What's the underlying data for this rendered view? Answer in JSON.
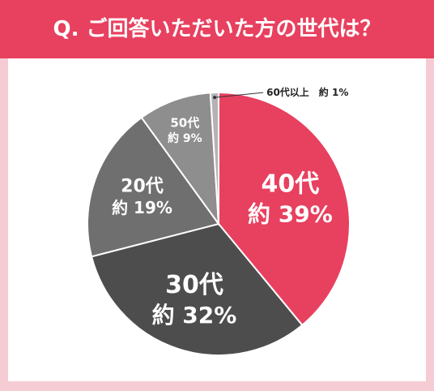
{
  "header": {
    "title": "Q. ご回答いただいた方の世代は？"
  },
  "colors": {
    "background": "#f6ccd4",
    "header": "#e8405f",
    "panel": "#ffffff",
    "slice_40s": "#e8405f",
    "slice_30s": "#4d4d4d",
    "slice_20s": "#6f6f6f",
    "slice_50s": "#8e8e8e",
    "slice_60plus": "#b3b3b3"
  },
  "chart_data": {
    "type": "pie",
    "title": "Q. ご回答いただいた方の世代は？",
    "slices": [
      {
        "category": "40代",
        "value": 39,
        "label": "約 39%"
      },
      {
        "category": "30代",
        "value": 32,
        "label": "約 32%"
      },
      {
        "category": "20代",
        "value": 19,
        "label": "約 19%"
      },
      {
        "category": "50代",
        "value": 9,
        "label": "約 9%"
      },
      {
        "category": "60代以上",
        "value": 1,
        "label": "約 1%"
      }
    ],
    "start_position": "top",
    "direction": "clockwise"
  }
}
